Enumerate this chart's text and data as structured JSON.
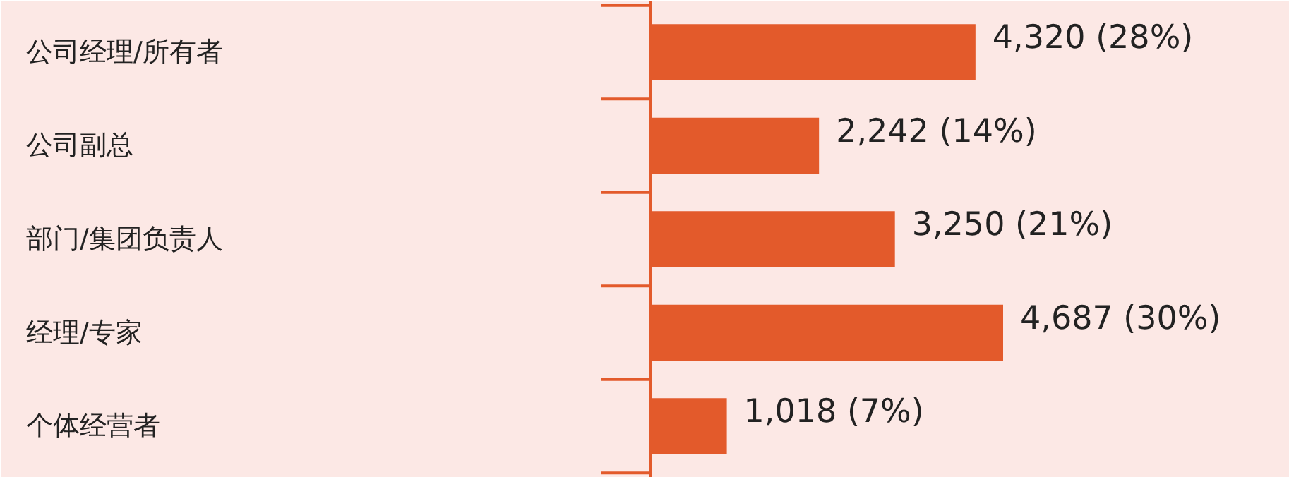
{
  "chart_data": {
    "type": "bar",
    "orientation": "horizontal",
    "categories": [
      "公司经理/所有者",
      "公司副总",
      "部门/集团负责人",
      "经理/专家",
      "个体经营者"
    ],
    "values": [
      4320,
      2242,
      3250,
      4687,
      1018
    ],
    "value_labels": [
      "4,320 (28%)",
      "2,242 (14%)",
      "3,250 (21%)",
      "4,687 (30%)",
      "1,018 (7%)"
    ],
    "color": "#e35a2b"
  }
}
